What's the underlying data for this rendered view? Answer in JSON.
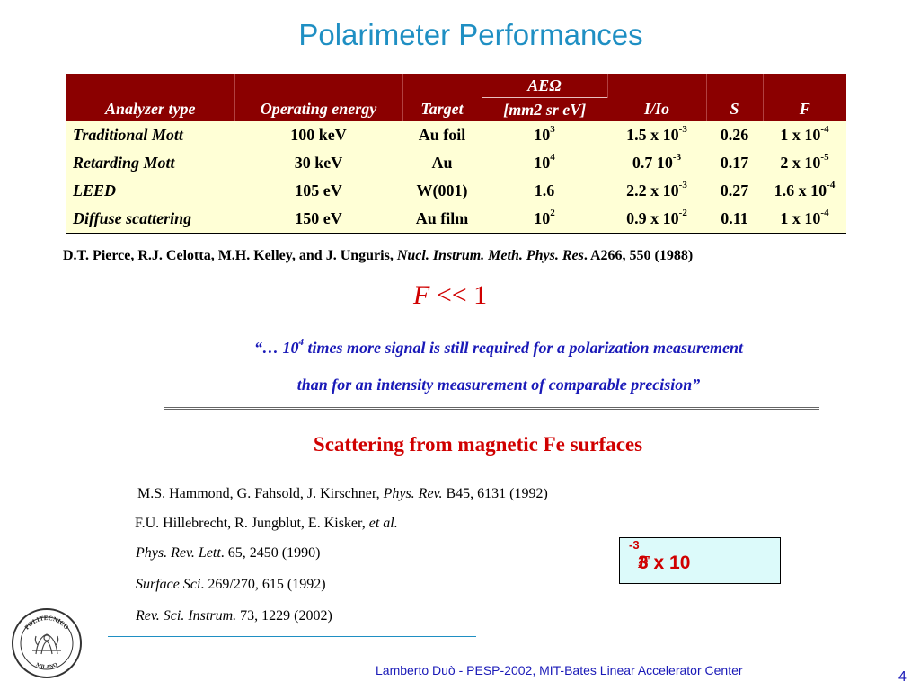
{
  "title": "Polarimeter Performances",
  "table": {
    "headers": {
      "analyzer": "Analyzer type",
      "energy": "Operating energy",
      "target": "Target",
      "ae_top": "AEΩ",
      "ae_bottom": "[mm2 sr eV]",
      "ratio": "I/Io",
      "s": "S",
      "f": "F"
    },
    "rows": [
      {
        "analyzer": "Traditional Mott",
        "energy": "100 keV",
        "target": "Au foil",
        "ae_base": "10",
        "ae_exp": "3",
        "ratio_base": "1.5 x 10",
        "ratio_exp": "-3",
        "s": "0.26",
        "f_base": "1 x 10",
        "f_exp": "-4"
      },
      {
        "analyzer": "Retarding Mott",
        "energy": "30 keV",
        "target": "Au",
        "ae_base": "10",
        "ae_exp": "4",
        "ratio_base": "0.7 10",
        "ratio_exp": "-3",
        "s": "0.17",
        "f_base": "2 x 10",
        "f_exp": "-5"
      },
      {
        "analyzer": "LEED",
        "energy": "105 eV",
        "target": "W(001)",
        "ae_base": "1.6",
        "ae_exp": "",
        "ratio_base": "2.2 x 10",
        "ratio_exp": "-3",
        "s": "0.27",
        "f_base": "1.6 x 10",
        "f_exp": "-4"
      },
      {
        "analyzer": "Diffuse scattering",
        "energy": "150 eV",
        "target": "Au film",
        "ae_base": "10",
        "ae_exp": "2",
        "ratio_base": "0.9 x 10",
        "ratio_exp": "-2",
        "s": "0.11",
        "f_base": "1 x 10",
        "f_exp": "-4"
      }
    ]
  },
  "reference1": {
    "authors": "D.T. Pierce, R.J. Celotta, M.H. Kelley, and J. Unguris, ",
    "journal": "Nucl. Instrum. Meth. Phys. Res",
    "details": ". A266, 550 (1988)"
  },
  "f_ll": {
    "symbol": "F",
    "relation": " << 1"
  },
  "quote": {
    "line1_pre": "“… 10",
    "line1_exp": "4",
    "line1_post": " times more signal is still  required for a polarization measurement",
    "line2": "than for an intensity measurement of comparable precision”"
  },
  "subheading": "Scattering from magnetic Fe surfaces",
  "references": [
    {
      "pre": "M.S. Hammond, G. Fahsold, J. Kirschner, ",
      "ital": "Phys. Rev.",
      "post": " B45, 6131 (1992)"
    },
    {
      "pre": "F.U. Hillebrecht, R. Jungblut, E. Kisker, ",
      "ital": "et al.",
      "post": ""
    },
    {
      "pre": "",
      "ital": "Phys. Rev. Lett",
      "post": ". 65, 2450 (1990)"
    },
    {
      "pre": "",
      "ital": "Surface Sci",
      "post": ". 269/270, 615 (1992)"
    },
    {
      "pre": "",
      "ital": "Rev. Sci. Instrum.",
      "post": " 73, 1229 (2002)"
    }
  ],
  "result_box": {
    "symbol": "F",
    "tilde": " ~ ",
    "value": "3 x 10",
    "exp": "-3"
  },
  "logo": {
    "icon": "politecnico-milano-seal-icon",
    "top_text": "POLITECNICO",
    "bottom_text": "MILANO"
  },
  "footer": "Lamberto Duò -  PESP-2002, MIT-Bates Linear Accelerator Center",
  "page_number": "4",
  "colors": {
    "title": "#1f8fc3",
    "table_header": "#8b0000",
    "table_body": "#ffffd6",
    "emphasis_red": "#d00000",
    "quote_blue": "#1a1ab8",
    "box_bg": "#dcfafa"
  }
}
